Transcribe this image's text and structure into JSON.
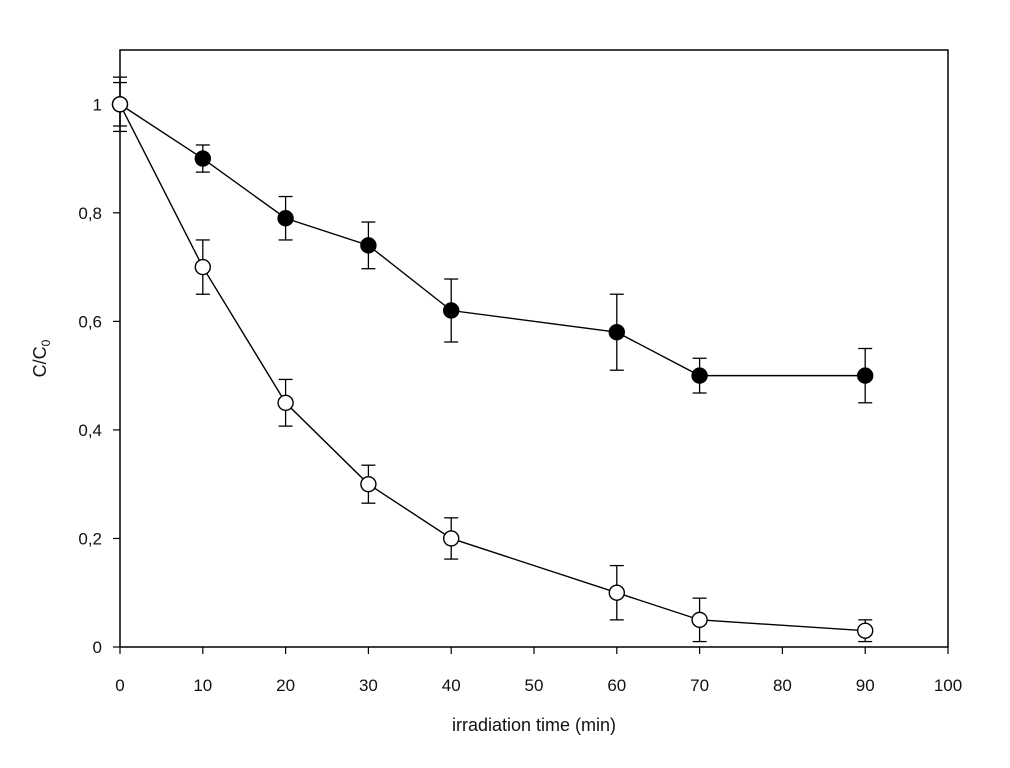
{
  "chart_data": {
    "type": "line",
    "title": "",
    "xlabel": "irradiation time (min)",
    "ylabel_main": "C/C",
    "ylabel_sub": "0",
    "xlim": [
      0,
      100
    ],
    "ylim": [
      0,
      1.1
    ],
    "xticks": [
      0,
      10,
      20,
      30,
      40,
      50,
      60,
      70,
      80,
      90,
      100
    ],
    "xtick_labels": [
      "0",
      "10",
      "20",
      "30",
      "40",
      "50",
      "60",
      "70",
      "80",
      "90",
      "100"
    ],
    "yticks": [
      0,
      0.2,
      0.4,
      0.6,
      0.8,
      1.0
    ],
    "ytick_labels": [
      "0",
      "0,2",
      "0,4",
      "0,6",
      "0,8",
      "1"
    ],
    "grid": false,
    "series": [
      {
        "name": "filled",
        "marker": "filled-circle",
        "color": "#000000",
        "x": [
          0,
          10,
          20,
          30,
          40,
          60,
          70,
          90
        ],
        "y": [
          1.0,
          0.9,
          0.79,
          0.74,
          0.62,
          0.58,
          0.5,
          0.5
        ],
        "err": [
          0.05,
          0.025,
          0.04,
          0.043,
          0.058,
          0.07,
          0.032,
          0.05
        ]
      },
      {
        "name": "open",
        "marker": "open-circle",
        "color": "#000000",
        "x": [
          0,
          10,
          20,
          30,
          40,
          60,
          70,
          90
        ],
        "y": [
          1.0,
          0.7,
          0.45,
          0.3,
          0.2,
          0.1,
          0.05,
          0.03
        ],
        "err": [
          0.04,
          0.05,
          0.043,
          0.035,
          0.038,
          0.05,
          0.04,
          0.02
        ]
      }
    ]
  }
}
